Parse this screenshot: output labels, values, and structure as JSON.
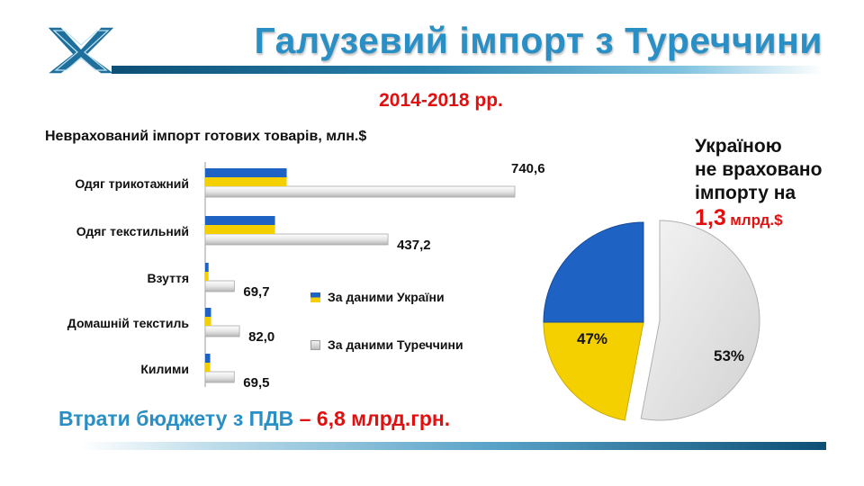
{
  "header": {
    "title": "Галузевий імпорт з Туреччини",
    "period": "2014-2018 рр."
  },
  "colors": {
    "accent_blue": "#2a8fc4",
    "accent_red": "#e01010",
    "ua_blue": "#1e63c4",
    "ua_yellow": "#f5d000",
    "turkey_grey": "#d9d9d9"
  },
  "chart_data": [
    {
      "type": "bar",
      "orientation": "horizontal",
      "title": "Неврахований імпорт готових товарів, млн.$",
      "categories": [
        "Одяг трикотажний",
        "Одяг текстильний",
        "Взуття",
        "Домашній текстиль",
        "Килими"
      ],
      "series": [
        {
          "name": "За даними України",
          "values": [
            195,
            167,
            8,
            14,
            12
          ],
          "color": "#1e63c4/#f5d000"
        },
        {
          "name": "За даними Туреччини",
          "values": [
            740.6,
            437.2,
            69.7,
            82.0,
            69.5
          ],
          "color": "#d9d9d9"
        }
      ],
      "data_labels": [
        "740,6",
        "437,2",
        "69,7",
        "82,0",
        "69,5"
      ],
      "xlim": [
        0,
        800
      ],
      "legend_position": "right"
    },
    {
      "type": "pie",
      "slices": [
        {
          "label": "47%",
          "value": 47,
          "colors": [
            "#1e63c4",
            "#f5d000"
          ]
        },
        {
          "label": "53%",
          "value": 53,
          "colors": [
            "#e8e8e8"
          ],
          "exploded": true
        }
      ]
    }
  ],
  "side_note": {
    "lines": [
      "Україною",
      "не враховано",
      "імпорту на"
    ],
    "amount_value": "1,3",
    "amount_unit": "млрд.$"
  },
  "footer": {
    "loss_text": "Втрати бюджету з ПДВ",
    "loss_value": "– 6,8 млрд.грн."
  }
}
